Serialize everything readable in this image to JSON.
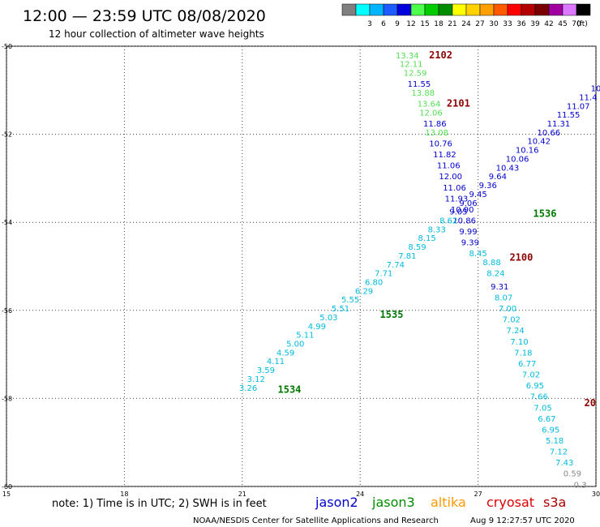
{
  "header": {
    "title": "12:00 — 23:59 UTC 08/08/2020",
    "subtitle": "12 hour collection of altimeter wave heights"
  },
  "colorbar": {
    "unit": "(ft)",
    "entries": [
      {
        "label": "",
        "color": "#7f7f7f"
      },
      {
        "label": "3",
        "color": "#00ffff"
      },
      {
        "label": "6",
        "color": "#00b4ff"
      },
      {
        "label": "9",
        "color": "#1e5cff"
      },
      {
        "label": "12",
        "color": "#0000dc"
      },
      {
        "label": "15",
        "color": "#4bff4b"
      },
      {
        "label": "18",
        "color": "#00cc00"
      },
      {
        "label": "21",
        "color": "#008c00"
      },
      {
        "label": "24",
        "color": "#ffff00"
      },
      {
        "label": "27",
        "color": "#ffd200"
      },
      {
        "label": "30",
        "color": "#ffa000"
      },
      {
        "label": "33",
        "color": "#ff5a00"
      },
      {
        "label": "36",
        "color": "#ff0000"
      },
      {
        "label": "39",
        "color": "#b40000"
      },
      {
        "label": "42",
        "color": "#780000"
      },
      {
        "label": "45",
        "color": "#a000a0"
      },
      {
        "label": "70",
        "color": "#dc78ff"
      },
      {
        "label": "",
        "color": "#000000"
      }
    ]
  },
  "footer": {
    "note": "note: 1) Time is in UTC; 2) SWH is in feet",
    "credit": "NOAA/NESDIS Center for Satellite Applications and Research",
    "timestamp": "Aug  9 12:27:57 UTC 2020",
    "satellites": [
      {
        "name": "jason2",
        "color": "#0000cc"
      },
      {
        "name": "jason3",
        "color": "#008c00"
      },
      {
        "name": "altika",
        "color": "#ff9900"
      },
      {
        "name": "cryosat",
        "color": "#dd0000"
      },
      {
        "name": "s3a",
        "color": "#aa0000"
      }
    ]
  },
  "chart_data": {
    "type": "scatter",
    "xlim": [
      15,
      30
    ],
    "ylim": [
      -60,
      -50
    ],
    "xticks": [
      "15",
      "18",
      "21",
      "24",
      "27",
      "30"
    ],
    "yticks": [
      "-50",
      "-52",
      "-54",
      "-56",
      "-58",
      "-60"
    ],
    "grid": true,
    "track_labels": [
      {
        "text": "2102",
        "x": 26.05,
        "y": -50.2,
        "color": "#8b0000"
      },
      {
        "text": "2101",
        "x": 26.5,
        "y": -51.3,
        "color": "#8b0000"
      },
      {
        "text": "1536",
        "x": 28.7,
        "y": -53.8,
        "color": "#007700"
      },
      {
        "text": "2100",
        "x": 28.1,
        "y": -54.8,
        "color": "#8b0000"
      },
      {
        "text": "1535",
        "x": 24.8,
        "y": -56.1,
        "color": "#007700"
      },
      {
        "text": "1534",
        "x": 22.2,
        "y": -57.8,
        "color": "#007700"
      },
      {
        "text": "20",
        "x": 29.85,
        "y": -58.1,
        "color": "#8b0000"
      }
    ],
    "points": [
      {
        "x": 25.2,
        "y": -50.2,
        "v": "13.34",
        "c": "#55dd55"
      },
      {
        "x": 25.3,
        "y": -50.4,
        "v": "12.11",
        "c": "#55dd55"
      },
      {
        "x": 25.4,
        "y": -50.6,
        "v": "12.59",
        "c": "#55dd55"
      },
      {
        "x": 25.5,
        "y": -50.85,
        "v": "11.55",
        "c": "#0000cc"
      },
      {
        "x": 25.6,
        "y": -51.05,
        "v": "13.88",
        "c": "#55dd55"
      },
      {
        "x": 25.75,
        "y": -51.3,
        "v": "13.64",
        "c": "#55dd55"
      },
      {
        "x": 25.8,
        "y": -51.5,
        "v": "12.06",
        "c": "#55dd55"
      },
      {
        "x": 25.9,
        "y": -51.75,
        "v": "11.86",
        "c": "#0000cc"
      },
      {
        "x": 25.95,
        "y": -51.95,
        "v": "13.08",
        "c": "#55dd55"
      },
      {
        "x": 26.05,
        "y": -52.2,
        "v": "10.76",
        "c": "#0000cc"
      },
      {
        "x": 26.15,
        "y": -52.45,
        "v": "11.82",
        "c": "#0000cc"
      },
      {
        "x": 26.25,
        "y": -52.7,
        "v": "11.06",
        "c": "#0000cc"
      },
      {
        "x": 26.3,
        "y": -52.95,
        "v": "12.00",
        "c": "#0000cc"
      },
      {
        "x": 26.4,
        "y": -53.2,
        "v": "11.06",
        "c": "#0000cc"
      },
      {
        "x": 26.45,
        "y": -53.45,
        "v": "11.93",
        "c": "#0000cc"
      },
      {
        "x": 26.6,
        "y": -53.7,
        "v": "10.90",
        "c": "#0000cc"
      },
      {
        "x": 26.65,
        "y": -53.95,
        "v": "10.86",
        "c": "#0000cc"
      },
      {
        "x": 26.75,
        "y": -54.2,
        "v": "9.99",
        "c": "#0000cc"
      },
      {
        "x": 26.8,
        "y": -54.45,
        "v": "9.39",
        "c": "#0000cc"
      },
      {
        "x": 27.0,
        "y": -54.7,
        "v": "8.45",
        "c": "#00bbdd"
      },
      {
        "x": 27.35,
        "y": -54.9,
        "v": "8.88",
        "c": "#00bbdd"
      },
      {
        "x": 27.45,
        "y": -55.15,
        "v": "8.24",
        "c": "#00bbdd"
      },
      {
        "x": 27.55,
        "y": -55.45,
        "v": "9.31",
        "c": "#0000cc"
      },
      {
        "x": 27.65,
        "y": -55.7,
        "v": "8.07",
        "c": "#00bbdd"
      },
      {
        "x": 27.75,
        "y": -55.95,
        "v": "7.00",
        "c": "#00bbdd"
      },
      {
        "x": 27.85,
        "y": -56.2,
        "v": "7.02",
        "c": "#00bbdd"
      },
      {
        "x": 27.95,
        "y": -56.45,
        "v": "7.24",
        "c": "#00bbdd"
      },
      {
        "x": 28.05,
        "y": -56.7,
        "v": "7.10",
        "c": "#00bbdd"
      },
      {
        "x": 28.15,
        "y": -56.95,
        "v": "7.18",
        "c": "#00bbdd"
      },
      {
        "x": 28.25,
        "y": -57.2,
        "v": "6.77",
        "c": "#00bbdd"
      },
      {
        "x": 28.35,
        "y": -57.45,
        "v": "7.02",
        "c": "#00bbdd"
      },
      {
        "x": 28.45,
        "y": -57.7,
        "v": "6.95",
        "c": "#00bbdd"
      },
      {
        "x": 28.55,
        "y": -57.95,
        "v": "7.66",
        "c": "#00bbdd"
      },
      {
        "x": 28.65,
        "y": -58.2,
        "v": "7.05",
        "c": "#00bbdd"
      },
      {
        "x": 28.75,
        "y": -58.45,
        "v": "6.67",
        "c": "#00bbdd"
      },
      {
        "x": 28.85,
        "y": -58.7,
        "v": "6.95",
        "c": "#00bbdd"
      },
      {
        "x": 28.95,
        "y": -58.95,
        "v": "5.18",
        "c": "#00bbdd"
      },
      {
        "x": 29.05,
        "y": -59.2,
        "v": "7.12",
        "c": "#00bbdd"
      },
      {
        "x": 29.2,
        "y": -59.45,
        "v": "7.43",
        "c": "#00bbdd"
      },
      {
        "x": 29.4,
        "y": -59.7,
        "v": "0.59",
        "c": "#888888"
      },
      {
        "x": 29.6,
        "y": -59.95,
        "v": "0.3",
        "c": "#888888"
      },
      {
        "x": 21.15,
        "y": -57.75,
        "v": "3.26",
        "c": "#00bbdd"
      },
      {
        "x": 21.35,
        "y": -57.55,
        "v": "3.12",
        "c": "#00bbdd"
      },
      {
        "x": 21.6,
        "y": -57.35,
        "v": "3.59",
        "c": "#00bbdd"
      },
      {
        "x": 21.85,
        "y": -57.15,
        "v": "4.11",
        "c": "#00bbdd"
      },
      {
        "x": 22.1,
        "y": -56.95,
        "v": "4.59",
        "c": "#00bbdd"
      },
      {
        "x": 22.35,
        "y": -56.75,
        "v": "5.00",
        "c": "#00bbdd"
      },
      {
        "x": 22.6,
        "y": -56.55,
        "v": "5.11",
        "c": "#00bbdd"
      },
      {
        "x": 22.9,
        "y": -56.35,
        "v": "4.99",
        "c": "#00bbdd"
      },
      {
        "x": 23.2,
        "y": -56.15,
        "v": "5.03",
        "c": "#00bbdd"
      },
      {
        "x": 23.5,
        "y": -55.95,
        "v": "5.51",
        "c": "#00bbdd"
      },
      {
        "x": 23.75,
        "y": -55.75,
        "v": "5.55",
        "c": "#00bbdd"
      },
      {
        "x": 24.1,
        "y": -55.55,
        "v": "6.29",
        "c": "#00bbdd"
      },
      {
        "x": 24.35,
        "y": -55.35,
        "v": "6.80",
        "c": "#00bbdd"
      },
      {
        "x": 24.6,
        "y": -55.15,
        "v": "7.71",
        "c": "#00bbdd"
      },
      {
        "x": 24.9,
        "y": -54.95,
        "v": "7.74",
        "c": "#00bbdd"
      },
      {
        "x": 25.2,
        "y": -54.75,
        "v": "7.81",
        "c": "#00bbdd"
      },
      {
        "x": 25.45,
        "y": -54.55,
        "v": "8.59",
        "c": "#00bbdd"
      },
      {
        "x": 25.7,
        "y": -54.35,
        "v": "8.15",
        "c": "#00bbdd"
      },
      {
        "x": 25.95,
        "y": -54.15,
        "v": "8.33",
        "c": "#00bbdd"
      },
      {
        "x": 26.25,
        "y": -53.95,
        "v": "8.62",
        "c": "#00bbdd"
      },
      {
        "x": 26.5,
        "y": -53.75,
        "v": "9.05",
        "c": "#0000cc"
      },
      {
        "x": 26.75,
        "y": -53.55,
        "v": "9.06",
        "c": "#0000cc"
      },
      {
        "x": 27.0,
        "y": -53.35,
        "v": "9.45",
        "c": "#0000cc"
      },
      {
        "x": 27.25,
        "y": -53.15,
        "v": "9.36",
        "c": "#0000cc"
      },
      {
        "x": 27.5,
        "y": -52.95,
        "v": "9.64",
        "c": "#0000cc"
      },
      {
        "x": 27.75,
        "y": -52.75,
        "v": "10.43",
        "c": "#0000cc"
      },
      {
        "x": 28.0,
        "y": -52.55,
        "v": "10.06",
        "c": "#0000cc"
      },
      {
        "x": 28.25,
        "y": -52.35,
        "v": "10.16",
        "c": "#0000cc"
      },
      {
        "x": 28.55,
        "y": -52.15,
        "v": "10.42",
        "c": "#0000cc"
      },
      {
        "x": 28.8,
        "y": -51.95,
        "v": "10.66",
        "c": "#0000cc"
      },
      {
        "x": 29.05,
        "y": -51.75,
        "v": "11.31",
        "c": "#0000cc"
      },
      {
        "x": 29.3,
        "y": -51.55,
        "v": "11.55",
        "c": "#0000cc"
      },
      {
        "x": 29.55,
        "y": -51.35,
        "v": "11.07",
        "c": "#0000cc"
      },
      {
        "x": 29.8,
        "y": -51.15,
        "v": "11.4",
        "c": "#0000cc"
      },
      {
        "x": 30.0,
        "y": -50.95,
        "v": "10",
        "c": "#0000cc"
      }
    ]
  }
}
